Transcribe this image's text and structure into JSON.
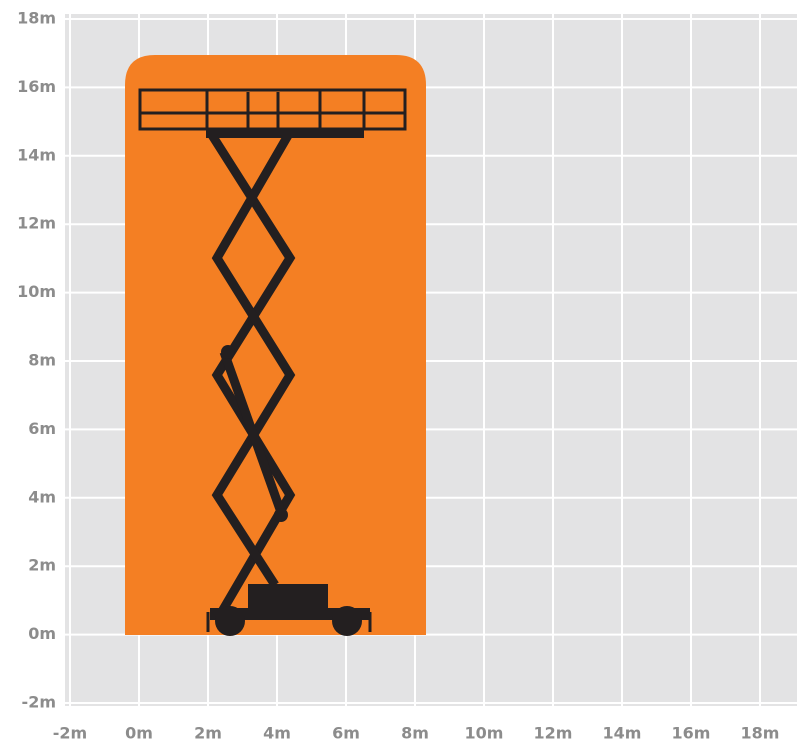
{
  "axes": {
    "xlim": [
      -2,
      18
    ],
    "ylim": [
      -2,
      18
    ],
    "xticks": [
      {
        "value": -2,
        "label": "-2m"
      },
      {
        "value": 0,
        "label": "0m"
      },
      {
        "value": 2,
        "label": "2m"
      },
      {
        "value": 4,
        "label": "4m"
      },
      {
        "value": 6,
        "label": "6m"
      },
      {
        "value": 8,
        "label": "8m"
      },
      {
        "value": 10,
        "label": "10m"
      },
      {
        "value": 12,
        "label": "12m"
      },
      {
        "value": 14,
        "label": "14m"
      },
      {
        "value": 16,
        "label": "16m"
      },
      {
        "value": 18,
        "label": "18m"
      }
    ],
    "yticks": [
      {
        "value": -2,
        "label": "-2m"
      },
      {
        "value": 0,
        "label": "0m"
      },
      {
        "value": 2,
        "label": "2m"
      },
      {
        "value": 4,
        "label": "4m"
      },
      {
        "value": 6,
        "label": "6m"
      },
      {
        "value": 8,
        "label": "8m"
      },
      {
        "value": 10,
        "label": "10m"
      },
      {
        "value": 12,
        "label": "12m"
      },
      {
        "value": 14,
        "label": "14m"
      },
      {
        "value": 16,
        "label": "16m"
      },
      {
        "value": 18,
        "label": "18m"
      }
    ]
  }
}
